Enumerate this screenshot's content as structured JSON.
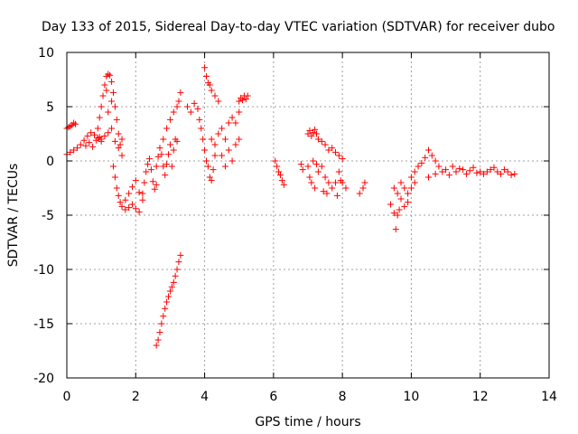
{
  "chart_data": {
    "type": "scatter",
    "title": "Day 133 of 2015, Sidereal Day-to-day VTEC variation (SDTVAR) for receiver dubo",
    "xlabel": "GPS time / hours",
    "ylabel": "SDTVAR / TECUs",
    "xlim": [
      0,
      14
    ],
    "ylim": [
      -20,
      10
    ],
    "xticks": [
      0,
      2,
      4,
      6,
      8,
      10,
      12,
      14
    ],
    "xtick_labels": [
      "0",
      "2",
      "4",
      "6",
      "8",
      "10",
      "12",
      "14"
    ],
    "yticks": [
      -20,
      -15,
      -10,
      -5,
      0,
      5,
      10
    ],
    "ytick_labels": [
      "-20",
      "-15",
      "-10",
      "-5",
      "0",
      "5",
      "10"
    ],
    "grid": true,
    "marker": "+",
    "color": "#ff0000",
    "series": [
      {
        "name": "SDTVAR",
        "points": [
          [
            0.0,
            3.0
          ],
          [
            0.05,
            3.1
          ],
          [
            0.1,
            3.2
          ],
          [
            0.15,
            3.3
          ],
          [
            0.2,
            3.5
          ],
          [
            0.25,
            3.4
          ],
          [
            0.0,
            0.6
          ],
          [
            0.1,
            0.8
          ],
          [
            0.2,
            1.0
          ],
          [
            0.3,
            1.2
          ],
          [
            0.4,
            1.5
          ],
          [
            0.5,
            1.9
          ],
          [
            0.6,
            2.3
          ],
          [
            0.7,
            2.6
          ],
          [
            0.8,
            2.4
          ],
          [
            0.9,
            2.1
          ],
          [
            1.0,
            1.8
          ],
          [
            0.55,
            1.4
          ],
          [
            0.65,
            1.7
          ],
          [
            0.75,
            1.3
          ],
          [
            0.85,
            1.9
          ],
          [
            0.95,
            2.2
          ],
          [
            0.9,
            3.0
          ],
          [
            0.95,
            4.0
          ],
          [
            1.0,
            5.0
          ],
          [
            1.05,
            6.0
          ],
          [
            1.1,
            7.0
          ],
          [
            1.15,
            7.8
          ],
          [
            1.2,
            8.0
          ],
          [
            1.25,
            7.9
          ],
          [
            1.3,
            7.3
          ],
          [
            1.35,
            6.3
          ],
          [
            1.4,
            5.0
          ],
          [
            1.45,
            3.8
          ],
          [
            1.5,
            2.5
          ],
          [
            1.55,
            1.5
          ],
          [
            1.6,
            0.5
          ],
          [
            1.0,
            2.0
          ],
          [
            1.1,
            2.3
          ],
          [
            1.2,
            2.6
          ],
          [
            1.3,
            3.0
          ],
          [
            1.4,
            1.8
          ],
          [
            1.5,
            1.2
          ],
          [
            1.6,
            2.0
          ],
          [
            1.2,
            4.5
          ],
          [
            1.3,
            5.5
          ],
          [
            1.15,
            6.5
          ],
          [
            1.35,
            -0.5
          ],
          [
            1.4,
            -1.5
          ],
          [
            1.45,
            -2.5
          ],
          [
            1.5,
            -3.2
          ],
          [
            1.55,
            -3.8
          ],
          [
            1.6,
            -4.2
          ],
          [
            1.7,
            -4.5
          ],
          [
            1.8,
            -4.3
          ],
          [
            1.9,
            -4.0
          ],
          [
            2.0,
            -4.4
          ],
          [
            2.1,
            -4.7
          ],
          [
            1.7,
            -3.6
          ],
          [
            1.8,
            -3.0
          ],
          [
            1.9,
            -2.4
          ],
          [
            2.0,
            -1.8
          ],
          [
            2.1,
            -2.9
          ],
          [
            2.2,
            -3.6
          ],
          [
            2.2,
            -3.0
          ],
          [
            2.25,
            -2.0
          ],
          [
            2.3,
            -1.0
          ],
          [
            2.35,
            -0.3
          ],
          [
            2.4,
            0.2
          ],
          [
            2.45,
            -0.8
          ],
          [
            2.5,
            -1.9
          ],
          [
            2.55,
            -2.6
          ],
          [
            2.6,
            -2.2
          ],
          [
            2.6,
            -0.5
          ],
          [
            2.65,
            0.4
          ],
          [
            2.7,
            1.2
          ],
          [
            2.75,
            0.6
          ],
          [
            2.8,
            -0.5
          ],
          [
            2.85,
            -1.3
          ],
          [
            2.9,
            -0.3
          ],
          [
            2.95,
            0.6
          ],
          [
            2.8,
            2.0
          ],
          [
            2.9,
            3.0
          ],
          [
            3.0,
            3.8
          ],
          [
            3.1,
            4.5
          ],
          [
            3.2,
            5.0
          ],
          [
            3.25,
            5.5
          ],
          [
            3.3,
            6.3
          ],
          [
            3.0,
            1.5
          ],
          [
            3.1,
            1.0
          ],
          [
            3.05,
            -0.5
          ],
          [
            3.15,
            2.0
          ],
          [
            3.2,
            1.8
          ],
          [
            2.6,
            -17.0
          ],
          [
            2.65,
            -16.5
          ],
          [
            2.7,
            -15.8
          ],
          [
            2.75,
            -15.0
          ],
          [
            2.8,
            -14.3
          ],
          [
            2.85,
            -13.6
          ],
          [
            2.9,
            -13.0
          ],
          [
            2.95,
            -12.5
          ],
          [
            3.0,
            -12.0
          ],
          [
            3.05,
            -11.6
          ],
          [
            3.1,
            -11.2
          ],
          [
            3.15,
            -10.6
          ],
          [
            3.2,
            -10.0
          ],
          [
            3.25,
            -9.3
          ],
          [
            3.3,
            -8.7
          ],
          [
            3.5,
            5.0
          ],
          [
            3.6,
            4.5
          ],
          [
            3.7,
            5.3
          ],
          [
            3.8,
            4.8
          ],
          [
            3.85,
            3.8
          ],
          [
            3.9,
            3.0
          ],
          [
            3.95,
            2.0
          ],
          [
            4.0,
            8.6
          ],
          [
            4.05,
            7.8
          ],
          [
            4.1,
            7.2
          ],
          [
            4.15,
            7.0
          ],
          [
            4.2,
            6.5
          ],
          [
            4.3,
            6.0
          ],
          [
            4.4,
            5.5
          ],
          [
            4.0,
            1.0
          ],
          [
            4.05,
            0.0
          ],
          [
            4.1,
            -0.5
          ],
          [
            4.15,
            -1.5
          ],
          [
            4.2,
            -1.8
          ],
          [
            4.25,
            -0.8
          ],
          [
            4.3,
            0.5
          ],
          [
            4.2,
            2.0
          ],
          [
            4.3,
            1.5
          ],
          [
            4.4,
            2.5
          ],
          [
            4.5,
            3.0
          ],
          [
            4.6,
            2.0
          ],
          [
            4.7,
            3.5
          ],
          [
            4.8,
            4.0
          ],
          [
            4.9,
            3.5
          ],
          [
            5.0,
            4.5
          ],
          [
            4.5,
            0.5
          ],
          [
            4.6,
            -0.5
          ],
          [
            4.7,
            1.0
          ],
          [
            4.8,
            0.0
          ],
          [
            4.9,
            1.5
          ],
          [
            5.0,
            2.0
          ],
          [
            5.0,
            5.5
          ],
          [
            5.05,
            5.8
          ],
          [
            5.1,
            5.6
          ],
          [
            5.15,
            6.0
          ],
          [
            5.2,
            5.7
          ],
          [
            5.25,
            6.0
          ],
          [
            6.05,
            0.0
          ],
          [
            6.1,
            -0.5
          ],
          [
            6.15,
            -1.0
          ],
          [
            6.2,
            -1.3
          ],
          [
            6.25,
            -1.8
          ],
          [
            6.3,
            -2.2
          ],
          [
            6.8,
            -0.3
          ],
          [
            6.85,
            -0.8
          ],
          [
            7.0,
            2.5
          ],
          [
            7.05,
            2.8
          ],
          [
            7.1,
            2.3
          ],
          [
            7.15,
            2.6
          ],
          [
            7.2,
            2.9
          ],
          [
            7.25,
            2.5
          ],
          [
            7.3,
            2.0
          ],
          [
            7.4,
            1.8
          ],
          [
            7.5,
            1.5
          ],
          [
            7.6,
            1.0
          ],
          [
            7.7,
            1.2
          ],
          [
            7.8,
            0.8
          ],
          [
            7.9,
            0.5
          ],
          [
            8.0,
            0.2
          ],
          [
            7.0,
            -0.5
          ],
          [
            7.05,
            -1.5
          ],
          [
            7.1,
            -2.0
          ],
          [
            7.2,
            -2.5
          ],
          [
            7.3,
            -1.0
          ],
          [
            7.4,
            -0.5
          ],
          [
            7.5,
            -1.5
          ],
          [
            7.6,
            -2.0
          ],
          [
            7.7,
            -2.5
          ],
          [
            7.8,
            -2.0
          ],
          [
            7.9,
            -1.0
          ],
          [
            8.0,
            -2.0
          ],
          [
            7.15,
            0.0
          ],
          [
            7.25,
            -0.3
          ],
          [
            7.45,
            -2.8
          ],
          [
            7.55,
            -3.0
          ],
          [
            7.85,
            -3.2
          ],
          [
            7.95,
            -1.8
          ],
          [
            8.1,
            -2.5
          ],
          [
            8.5,
            -3.0
          ],
          [
            8.6,
            -2.5
          ],
          [
            8.65,
            -2.0
          ],
          [
            9.4,
            -4.0
          ],
          [
            9.5,
            -4.8
          ],
          [
            9.55,
            -6.3
          ],
          [
            9.6,
            -5.0
          ],
          [
            9.65,
            -4.5
          ],
          [
            9.7,
            -3.5
          ],
          [
            9.8,
            -4.2
          ],
          [
            9.9,
            -3.8
          ],
          [
            9.5,
            -2.5
          ],
          [
            9.6,
            -3.0
          ],
          [
            9.7,
            -2.0
          ],
          [
            9.8,
            -2.5
          ],
          [
            9.9,
            -3.0
          ],
          [
            10.0,
            -2.5
          ],
          [
            10.1,
            -2.0
          ],
          [
            10.0,
            -1.5
          ],
          [
            10.1,
            -1.0
          ],
          [
            10.2,
            -0.5
          ],
          [
            10.3,
            -0.2
          ],
          [
            10.4,
            0.3
          ],
          [
            10.5,
            1.0
          ],
          [
            10.6,
            0.5
          ],
          [
            10.7,
            0.0
          ],
          [
            10.8,
            -0.5
          ],
          [
            10.5,
            -1.5
          ],
          [
            10.7,
            -1.2
          ],
          [
            10.9,
            -1.0
          ],
          [
            11.0,
            -0.8
          ],
          [
            11.1,
            -1.3
          ],
          [
            11.2,
            -0.5
          ],
          [
            11.3,
            -1.0
          ],
          [
            11.4,
            -0.7
          ],
          [
            11.5,
            -0.8
          ],
          [
            11.6,
            -1.2
          ],
          [
            11.7,
            -0.9
          ],
          [
            11.8,
            -0.6
          ],
          [
            11.9,
            -1.1
          ],
          [
            12.0,
            -1.0
          ],
          [
            12.1,
            -1.2
          ],
          [
            12.2,
            -1.0
          ],
          [
            12.3,
            -0.8
          ],
          [
            12.4,
            -0.6
          ],
          [
            12.5,
            -1.0
          ],
          [
            12.6,
            -1.2
          ],
          [
            12.7,
            -0.8
          ],
          [
            12.8,
            -1.0
          ],
          [
            12.9,
            -1.3
          ],
          [
            13.0,
            -1.2
          ]
        ]
      }
    ]
  }
}
